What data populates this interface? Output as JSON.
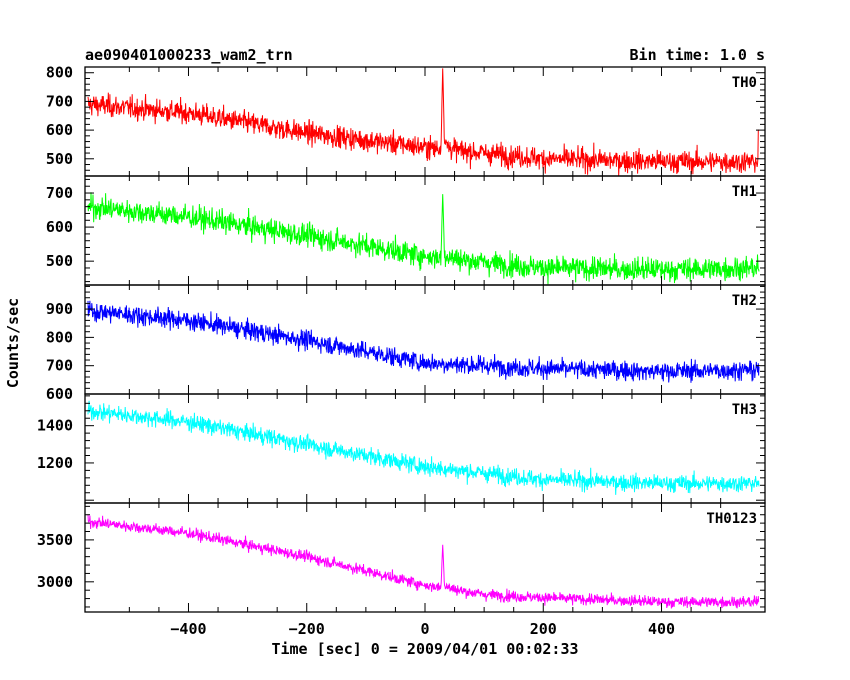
{
  "header": {
    "title": "ae090401000233_wam2_trn",
    "bin_time": "Bin time: 1.0 s"
  },
  "axes": {
    "xlabel": "Time [sec] 0 = 2009/04/01 00:02:33",
    "ylabel": "Counts/sec"
  },
  "chart_data": {
    "type": "line",
    "title": "ae090401000233_wam2_trn",
    "subtitle": "Bin time: 1.0 s",
    "xlabel": "Time [sec] 0 = 2009/04/01 00:02:33",
    "ylabel": "Counts/sec",
    "xlim": [
      -575,
      575
    ],
    "x_range": [
      -570,
      565
    ],
    "x_ticks": [
      -400,
      -200,
      0,
      200,
      400
    ],
    "burst_time": 30,
    "series": [
      {
        "name": "TH0",
        "color": "#ff0000",
        "ylim": [
          440,
          820
        ],
        "y_ticks": [
          500,
          600,
          700,
          800
        ],
        "trend": [
          [
            -570,
            690
          ],
          [
            -400,
            660
          ],
          [
            -200,
            590
          ],
          [
            0,
            540
          ],
          [
            200,
            500
          ],
          [
            400,
            490
          ],
          [
            565,
            490
          ]
        ],
        "noise_sd": 32,
        "burst_peak": 820,
        "end_spike": 600
      },
      {
        "name": "TH1",
        "color": "#00ff00",
        "ylim": [
          430,
          750
        ],
        "y_ticks": [
          500,
          600,
          700
        ],
        "trend": [
          [
            -570,
            660
          ],
          [
            -400,
            630
          ],
          [
            -200,
            575
          ],
          [
            0,
            515
          ],
          [
            200,
            480
          ],
          [
            400,
            475
          ],
          [
            565,
            480
          ]
        ],
        "noise_sd": 28,
        "burst_peak": 700
      },
      {
        "name": "TH2",
        "color": "#0000ff",
        "ylim": [
          600,
          985
        ],
        "y_ticks": [
          600,
          700,
          800,
          900
        ],
        "trend": [
          [
            -570,
            895
          ],
          [
            -400,
            860
          ],
          [
            -200,
            790
          ],
          [
            0,
            710
          ],
          [
            200,
            690
          ],
          [
            400,
            680
          ],
          [
            565,
            685
          ]
        ],
        "noise_sd": 28
      },
      {
        "name": "TH3",
        "color": "#00ffff",
        "ylim": [
          985,
          1570
        ],
        "y_ticks": [
          1200,
          1400
        ],
        "trend": [
          [
            -570,
            1480
          ],
          [
            -400,
            1420
          ],
          [
            -200,
            1300
          ],
          [
            0,
            1180
          ],
          [
            200,
            1110
          ],
          [
            400,
            1090
          ],
          [
            565,
            1090
          ]
        ],
        "noise_sd": 38
      },
      {
        "name": "TH0123",
        "color": "#ff00ff",
        "ylim": [
          2640,
          3940
        ],
        "y_ticks": [
          3000,
          3500
        ],
        "trend": [
          [
            -570,
            3720
          ],
          [
            -400,
            3580
          ],
          [
            -200,
            3300
          ],
          [
            0,
            2960
          ],
          [
            100,
            2850
          ],
          [
            200,
            2810
          ],
          [
            400,
            2760
          ],
          [
            565,
            2760
          ]
        ],
        "noise_sd": 55,
        "burst_peak": 3450
      }
    ]
  }
}
